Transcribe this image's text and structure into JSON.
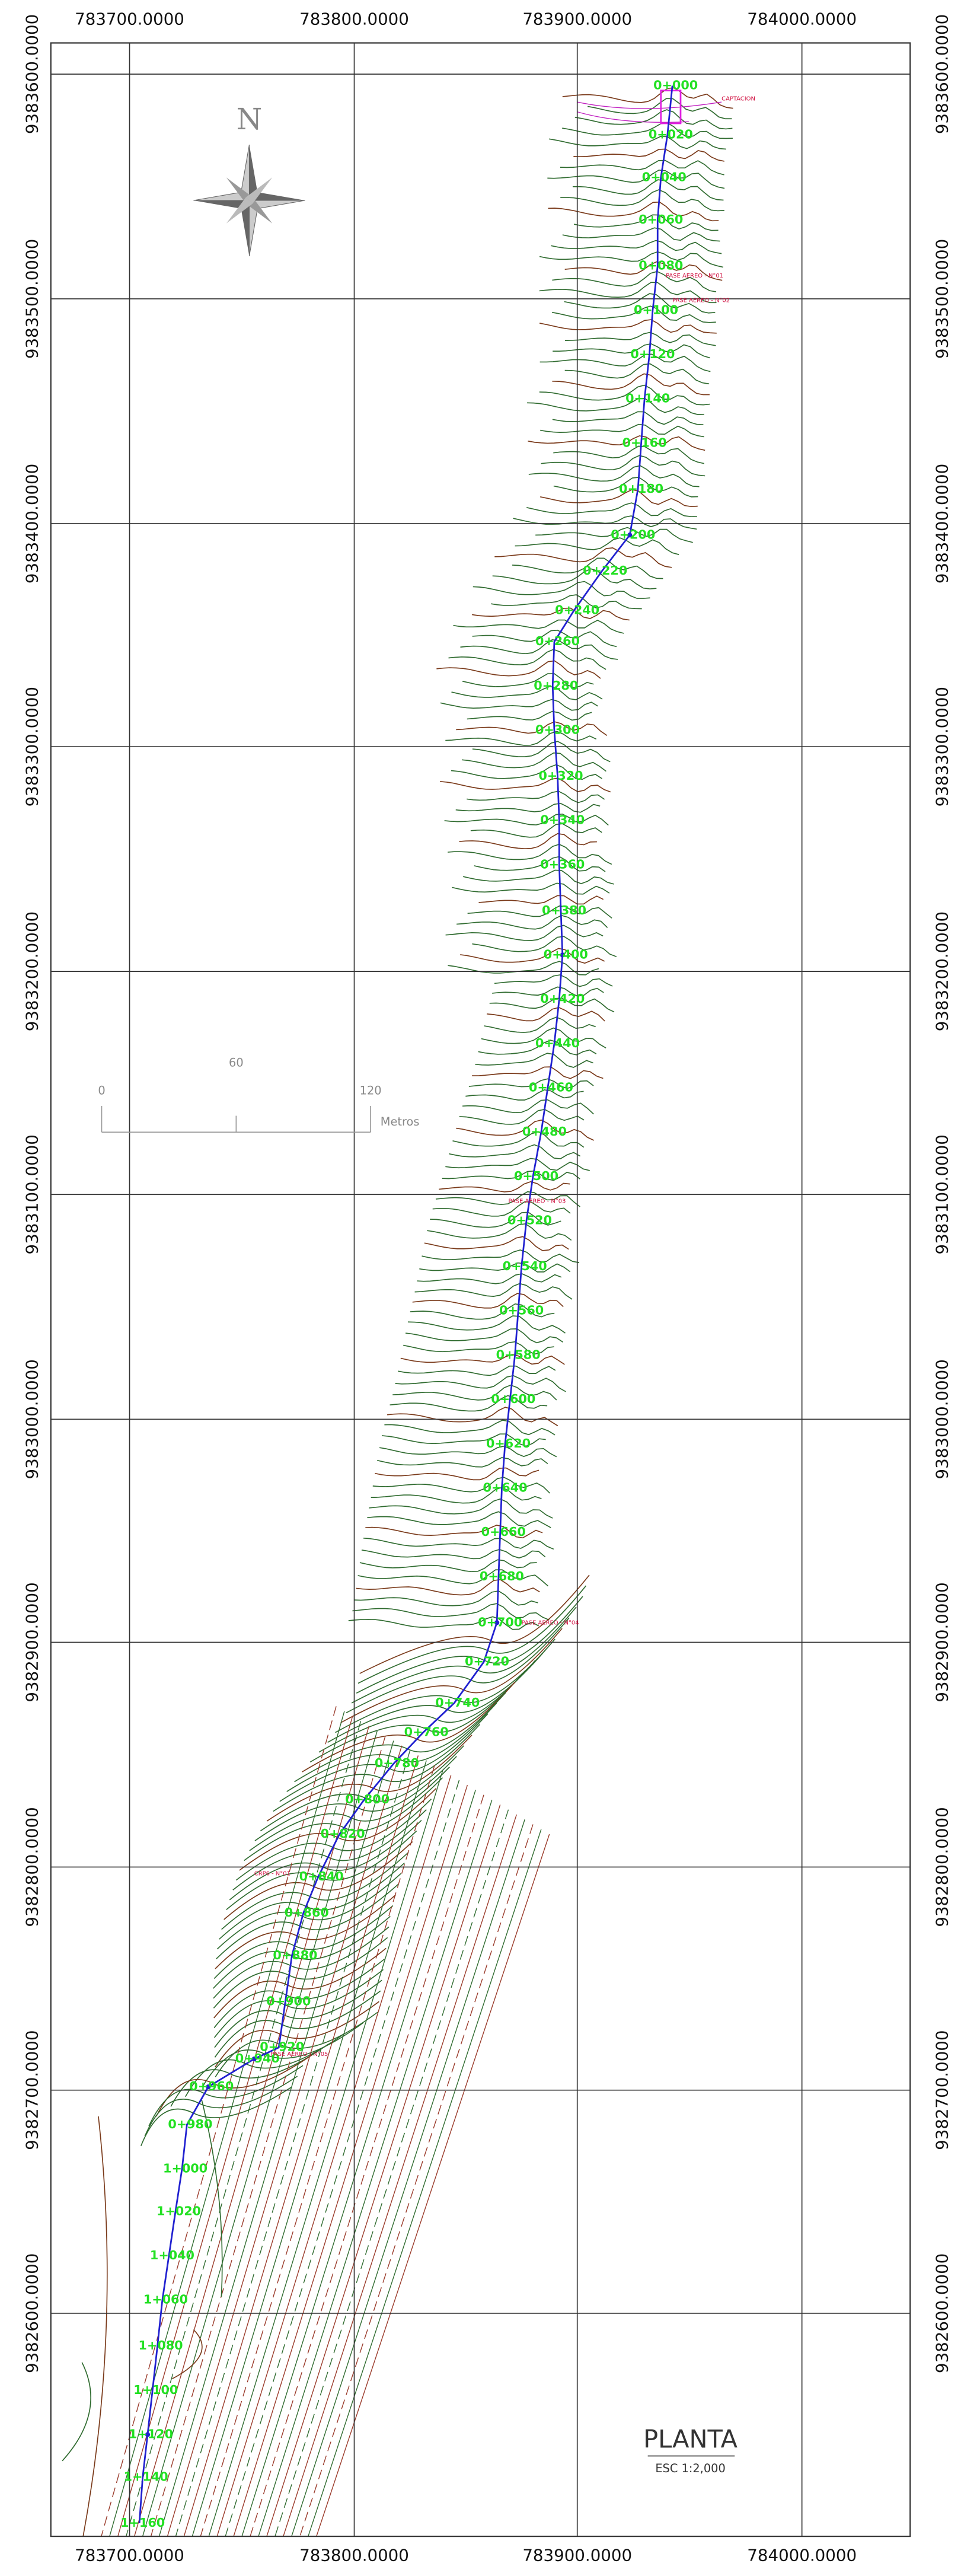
{
  "grid_labels": {
    "top": [
      "783700.0000",
      "783800.0000",
      "783900.0000",
      "784000.0000"
    ],
    "bottom": [
      "783700.0000",
      "783800.0000",
      "783900.0000",
      "784000.0000"
    ],
    "left": [
      "9383600.0000",
      "9383500.0000",
      "9383400.0000",
      "9383300.0000",
      "9383200.0000",
      "9383100.0000",
      "9383000.0000",
      "9382900.0000",
      "9382800.0000",
      "9382700.0000",
      "9382600.0000"
    ],
    "right": [
      "9383600.0000",
      "9383500.0000",
      "9383400.0000",
      "9383300.0000",
      "9383200.0000",
      "9383100.0000",
      "9383000.0000",
      "9382900.0000",
      "9382800.0000",
      "9382700.0000",
      "9382600.0000"
    ]
  },
  "north_arrow": "N",
  "scale_bar": {
    "ticks": [
      "0",
      "60",
      "120"
    ],
    "unit": "Metros"
  },
  "stations": [
    "0+000",
    "0+020",
    "0+040",
    "0+060",
    "0+080",
    "0+100",
    "0+120",
    "0+140",
    "0+160",
    "0+180",
    "0+200",
    "0+220",
    "0+240",
    "0+260",
    "0+280",
    "0+300",
    "0+320",
    "0+340",
    "0+360",
    "0+380",
    "0+400",
    "0+420",
    "0+440",
    "0+460",
    "0+480",
    "0+500",
    "0+520",
    "0+540",
    "0+560",
    "0+580",
    "0+600",
    "0+620",
    "0+640",
    "0+660",
    "0+680",
    "0+700",
    "0+720",
    "0+740",
    "0+760",
    "0+780",
    "0+800",
    "0+820",
    "0+840",
    "0+860",
    "0+880",
    "0+900",
    "0+920",
    "0+940",
    "0+960",
    "0+980",
    "1+000",
    "1+020",
    "1+040",
    "1+060",
    "1+080",
    "1+100",
    "1+120",
    "1+140",
    "1+160"
  ],
  "annotations": [
    "CAPTACION",
    "PASE AEREO - N°01",
    "PASE AEREO - N°02",
    "PASE AEREO - N°03",
    "PASE AEREO - N°04",
    "CRP6 - N°01",
    "PASE AEREO - N°05"
  ],
  "title": {
    "name": "PLANTA",
    "scale": "ESC 1:2,000"
  }
}
